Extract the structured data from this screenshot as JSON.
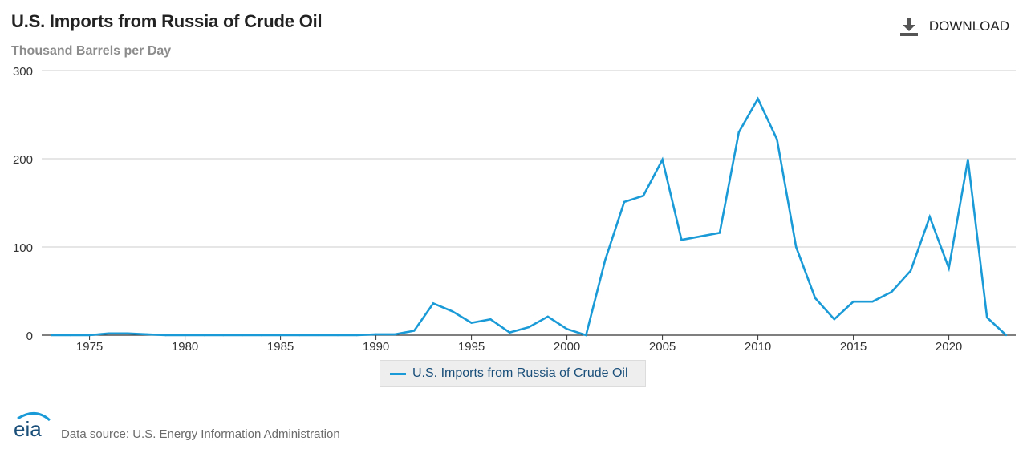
{
  "header": {
    "title": "U.S. Imports from Russia of Crude Oil",
    "subtitle": "Thousand Barrels per Day",
    "download_label": "DOWNLOAD"
  },
  "footer": {
    "logo_text": "eia",
    "source": "Data source: U.S. Energy Information Administration"
  },
  "colors": {
    "series": "#1a9bd7",
    "grid": "#cccccc",
    "axis": "#333333",
    "tick_text": "#333333"
  },
  "chart_data": {
    "type": "line",
    "title": "U.S. Imports from Russia of Crude Oil",
    "ylabel": "Thousand Barrels per Day",
    "xlabel": "",
    "xlim": [
      1973,
      2023
    ],
    "ylim": [
      0,
      300
    ],
    "x_ticks": [
      1975,
      1980,
      1985,
      1990,
      1995,
      2000,
      2005,
      2010,
      2015,
      2020
    ],
    "y_ticks": [
      0,
      100,
      200,
      300
    ],
    "grid": true,
    "legend_position": "bottom-center",
    "series": [
      {
        "name": "U.S. Imports from Russia of Crude Oil",
        "x": [
          1973,
          1974,
          1975,
          1976,
          1977,
          1978,
          1979,
          1980,
          1981,
          1982,
          1983,
          1984,
          1985,
          1986,
          1987,
          1988,
          1989,
          1990,
          1991,
          1992,
          1993,
          1994,
          1995,
          1996,
          1997,
          1998,
          1999,
          2000,
          2001,
          2002,
          2003,
          2004,
          2005,
          2006,
          2007,
          2008,
          2009,
          2010,
          2011,
          2012,
          2013,
          2014,
          2015,
          2016,
          2017,
          2018,
          2019,
          2020,
          2021,
          2022,
          2023
        ],
        "values": [
          0,
          0,
          0,
          2,
          2,
          1,
          0,
          0,
          0,
          0,
          0,
          0,
          0,
          0,
          0,
          0,
          0,
          1,
          1,
          5,
          36,
          27,
          14,
          18,
          3,
          9,
          21,
          7,
          0,
          85,
          151,
          158,
          199,
          108,
          112,
          116,
          230,
          268,
          222,
          100,
          42,
          18,
          38,
          38,
          49,
          73,
          134,
          76,
          199,
          20,
          0
        ]
      }
    ]
  }
}
